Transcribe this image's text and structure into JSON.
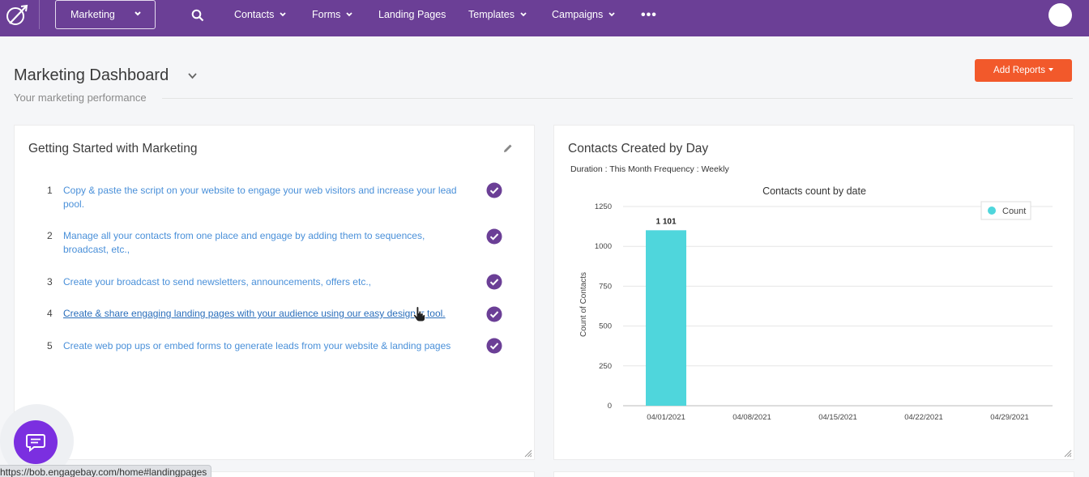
{
  "nav": {
    "app_selector": "Marketing",
    "items": [
      {
        "label": "Contacts",
        "has_caret": true
      },
      {
        "label": "Forms",
        "has_caret": true
      },
      {
        "label": "Landing Pages",
        "has_caret": false
      },
      {
        "label": "Templates",
        "has_caret": true
      },
      {
        "label": "Campaigns",
        "has_caret": true
      }
    ],
    "more": "•••"
  },
  "header": {
    "title": "Marketing Dashboard",
    "subtitle": "Your marketing performance",
    "add_reports_label": "Add Reports"
  },
  "getting_started": {
    "title": "Getting Started with Marketing",
    "steps": [
      {
        "num": "1",
        "text": "Copy & paste the script on your website to engage your web visitors and increase your lead pool.",
        "done": true
      },
      {
        "num": "2",
        "text": "Manage all your contacts from one place and engage by adding them to sequences, broadcast, etc.,",
        "done": true
      },
      {
        "num": "3",
        "text": "Create your broadcast to send newsletters, announcements, offers etc.,",
        "done": true
      },
      {
        "num": "4",
        "text": "Create & share engaging landing pages with your audience using our easy designer tool.",
        "done": true,
        "hovered": true
      },
      {
        "num": "5",
        "text": "Create web pop ups or embed forms to generate leads from your website & landing pages",
        "done": true
      }
    ]
  },
  "contacts_card": {
    "title": "Contacts Created by Day",
    "meta": "Duration : This Month Frequency : Weekly"
  },
  "chart_data": {
    "type": "bar",
    "title": "Contacts count by date",
    "xlabel": "",
    "ylabel": "Count of Contacts",
    "categories": [
      "04/01/2021",
      "04/08/2021",
      "04/15/2021",
      "04/22/2021",
      "04/29/2021"
    ],
    "series": [
      {
        "name": "Count",
        "values": [
          1101,
          0,
          0,
          0,
          0
        ],
        "color": "#4fd6dc"
      }
    ],
    "data_label": "1 101",
    "ylim": [
      0,
      1250
    ],
    "yticks": [
      0,
      250,
      500,
      750,
      1000,
      1250
    ],
    "grid": true,
    "legend": "top-right"
  },
  "status_bar": {
    "url": "https://bob.engagebay.com/home#landingpages"
  },
  "colors": {
    "nav_bg": "#6b3f96",
    "accent": "#f2592b",
    "check": "#6b3f96",
    "link": "#4a90d9",
    "chat": "#7b2fe0"
  }
}
